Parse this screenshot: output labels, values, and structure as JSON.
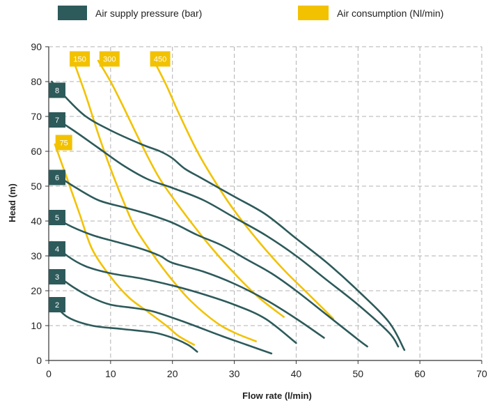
{
  "legend": {
    "items": [
      {
        "label": "Air supply pressure (bar)",
        "color": "#2d5a5a",
        "marker": "dark-teal-swatch"
      },
      {
        "label": "Air consumption (Nl/min)",
        "color": "#f2c200",
        "marker": "yellow-swatch"
      }
    ]
  },
  "chart_data": {
    "type": "line",
    "title": "",
    "xlabel": "Flow rate (l/min)",
    "ylabel": "Head (m)",
    "xlim": [
      0,
      70
    ],
    "ylim": [
      0,
      90
    ],
    "xticks": [
      0,
      10,
      20,
      30,
      40,
      50,
      60,
      70
    ],
    "yticks": [
      0,
      10,
      20,
      30,
      40,
      50,
      60,
      70,
      80,
      90
    ],
    "grid": true,
    "legend_position": "top",
    "colors": {
      "pressure": "#2d5a5a",
      "consumption": "#f2c200"
    },
    "series": [
      {
        "group": "pressure",
        "name": "2",
        "label_at": [
          0,
          16
        ],
        "points": [
          [
            0.5,
            17
          ],
          [
            3,
            12.5
          ],
          [
            7,
            10
          ],
          [
            12,
            9
          ],
          [
            17,
            8
          ],
          [
            20,
            6.5
          ],
          [
            22.5,
            4.5
          ],
          [
            24,
            2.5
          ]
        ]
      },
      {
        "group": "pressure",
        "name": "3",
        "label_at": [
          0,
          24
        ],
        "points": [
          [
            0.5,
            25.5
          ],
          [
            4,
            21
          ],
          [
            7,
            18
          ],
          [
            10,
            16
          ],
          [
            14,
            15
          ],
          [
            17,
            14
          ],
          [
            22,
            11
          ],
          [
            28,
            7
          ],
          [
            32,
            4.5
          ],
          [
            36,
            2
          ]
        ]
      },
      {
        "group": "pressure",
        "name": "4",
        "label_at": [
          0,
          32
        ],
        "points": [
          [
            0.5,
            34
          ],
          [
            3,
            30
          ],
          [
            6,
            27
          ],
          [
            10,
            25
          ],
          [
            15,
            23.5
          ],
          [
            20,
            21.5
          ],
          [
            25,
            19
          ],
          [
            30,
            16
          ],
          [
            35,
            12
          ],
          [
            40,
            5
          ]
        ]
      },
      {
        "group": "pressure",
        "name": "5",
        "label_at": [
          0,
          41
        ],
        "points": [
          [
            0.5,
            42
          ],
          [
            3,
            39
          ],
          [
            7,
            36
          ],
          [
            11,
            34
          ],
          [
            15,
            32
          ],
          [
            18,
            30
          ],
          [
            20,
            28
          ],
          [
            25,
            25.5
          ],
          [
            30,
            22
          ],
          [
            35,
            17.5
          ],
          [
            40,
            12
          ],
          [
            44.5,
            6.5
          ]
        ]
      },
      {
        "group": "pressure",
        "name": "6",
        "label_at": [
          0,
          52.5
        ],
        "points": [
          [
            0.5,
            54
          ],
          [
            4,
            50
          ],
          [
            8,
            46
          ],
          [
            12,
            44
          ],
          [
            16,
            42
          ],
          [
            20,
            39.5
          ],
          [
            24,
            36
          ],
          [
            28,
            33
          ],
          [
            32,
            29
          ],
          [
            36,
            25
          ],
          [
            40,
            20
          ],
          [
            45,
            13
          ],
          [
            50,
            6
          ],
          [
            51.5,
            4
          ]
        ]
      },
      {
        "group": "pressure",
        "name": "7",
        "label_at": [
          0,
          69
        ],
        "points": [
          [
            0.5,
            70
          ],
          [
            4,
            66
          ],
          [
            8,
            61
          ],
          [
            12,
            56
          ],
          [
            16,
            52
          ],
          [
            20,
            49.5
          ],
          [
            25,
            46
          ],
          [
            30,
            41
          ],
          [
            35,
            36
          ],
          [
            40,
            30
          ],
          [
            45,
            23
          ],
          [
            50,
            16
          ],
          [
            55,
            8
          ],
          [
            56.5,
            4
          ]
        ]
      },
      {
        "group": "pressure",
        "name": "8",
        "label_at": [
          0,
          77.5
        ],
        "points": [
          [
            0.5,
            80
          ],
          [
            3,
            75
          ],
          [
            6,
            70
          ],
          [
            10,
            66
          ],
          [
            15,
            62
          ],
          [
            18,
            60
          ],
          [
            20,
            58
          ],
          [
            22,
            55
          ],
          [
            25,
            52
          ],
          [
            30,
            47
          ],
          [
            35,
            42
          ],
          [
            40,
            35
          ],
          [
            45,
            28
          ],
          [
            50,
            20
          ],
          [
            55,
            11
          ],
          [
            57.5,
            3
          ]
        ]
      },
      {
        "group": "consumption",
        "name": "75",
        "label_at": [
          1.2,
          62.5
        ],
        "points": [
          [
            1,
            62
          ],
          [
            3,
            52
          ],
          [
            5,
            42
          ],
          [
            7,
            32
          ],
          [
            10,
            24
          ],
          [
            13,
            18
          ],
          [
            16,
            14
          ],
          [
            19,
            10
          ],
          [
            21,
            7
          ],
          [
            23.5,
            4.5
          ]
        ]
      },
      {
        "group": "consumption",
        "name": "150",
        "label_at": [
          3.5,
          86.5
        ],
        "points": [
          [
            4,
            86
          ],
          [
            6,
            76
          ],
          [
            8,
            65
          ],
          [
            10,
            55
          ],
          [
            12,
            46
          ],
          [
            14,
            38
          ],
          [
            17,
            30
          ],
          [
            20,
            23
          ],
          [
            23,
            17
          ],
          [
            27,
            11
          ],
          [
            30,
            8
          ],
          [
            33.5,
            5.5
          ]
        ]
      },
      {
        "group": "consumption",
        "name": "300",
        "label_at": [
          8.3,
          86.5
        ],
        "points": [
          [
            8,
            86
          ],
          [
            10,
            80
          ],
          [
            12,
            73
          ],
          [
            15,
            62
          ],
          [
            18,
            52
          ],
          [
            22,
            42
          ],
          [
            26,
            33
          ],
          [
            30,
            25
          ],
          [
            34,
            18
          ],
          [
            38,
            12.5
          ]
        ]
      },
      {
        "group": "consumption",
        "name": "450",
        "label_at": [
          16.5,
          86.5
        ],
        "points": [
          [
            17,
            86
          ],
          [
            19,
            79
          ],
          [
            21,
            71
          ],
          [
            24,
            60
          ],
          [
            27,
            51
          ],
          [
            30,
            43
          ],
          [
            34,
            34
          ],
          [
            38,
            26
          ],
          [
            42,
            19
          ],
          [
            46,
            12
          ]
        ]
      }
    ]
  }
}
